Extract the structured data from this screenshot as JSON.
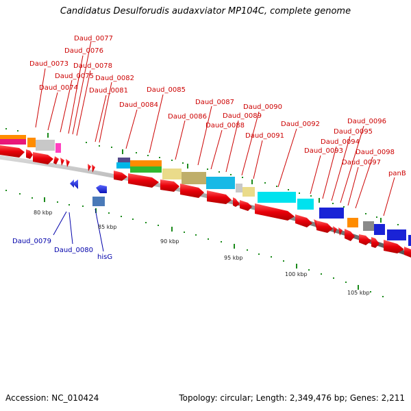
{
  "title": "Candidatus Desulforudis audaxviator MP104C, complete genome",
  "footer": {
    "accession": "Accession: NC_010424",
    "summary": "Topology: circular; Length: 2,349,476 bp; Genes: 2,211"
  },
  "colors": {
    "forward_strand": "#e8000a",
    "reverse_strand": "#1a23d6",
    "forward_label": "#cc0000",
    "reverse_label": "#0000aa",
    "backbone": "#9a9a9a",
    "tick": "#1a8a1a"
  },
  "forward_labels": [
    "Daud_0073",
    "Daud_0074",
    "Daud_0075",
    "Daud_0076",
    "Daud_0077",
    "Daud_0078",
    "Daud_0081",
    "Daud_0082",
    "Daud_0084",
    "Daud_0085",
    "Daud_0086",
    "Daud_0087",
    "Daud_0088",
    "Daud_0089",
    "Daud_0090",
    "Daud_0091",
    "Daud_0092",
    "Daud_0093",
    "Daud_0094",
    "Daud_0095",
    "Daud_0096",
    "Daud_0097",
    "Daud_0098",
    "panB"
  ],
  "reverse_labels": [
    "Daud_0079",
    "Daud_0080",
    "hisG"
  ],
  "scale_labels": [
    "80 kbp",
    "85 kbp",
    "90 kbp",
    "95 kbp",
    "100 kbp",
    "105 kbp"
  ]
}
